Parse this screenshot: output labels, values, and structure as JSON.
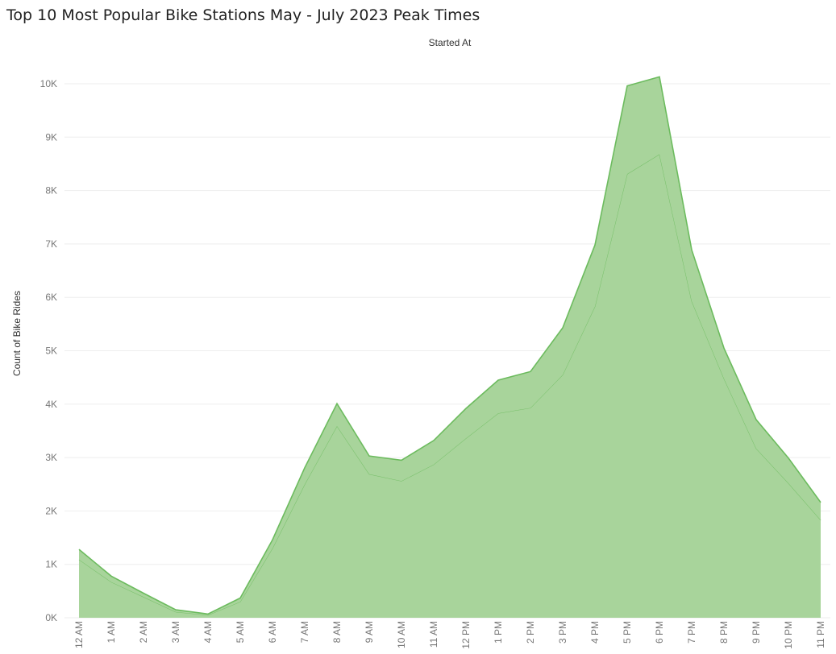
{
  "chart_data": {
    "type": "area",
    "title": "Top 10 Most Popular Bike Stations May - July 2023 Peak Times",
    "xlabel": "Started At",
    "ylabel": "Count of Bike Rides",
    "categories": [
      "12 AM",
      "1 AM",
      "2 AM",
      "3 AM",
      "4 AM",
      "5 AM",
      "6 AM",
      "7 AM",
      "8 AM",
      "9 AM",
      "10 AM",
      "11 AM",
      "12 PM",
      "1 PM",
      "2 PM",
      "3 PM",
      "4 PM",
      "5 PM",
      "6 PM",
      "7 PM",
      "8 PM",
      "9 PM",
      "10 PM",
      "11 PM"
    ],
    "y_ticks": [
      0,
      1000,
      2000,
      3000,
      4000,
      5000,
      6000,
      7000,
      8000,
      9000,
      10000
    ],
    "y_tick_labels": [
      "0K",
      "1K",
      "2K",
      "3K",
      "4K",
      "5K",
      "6K",
      "7K",
      "8K",
      "9K",
      "10K"
    ],
    "ylim": [
      0,
      10600
    ],
    "stacked": true,
    "series": [
      {
        "values": [
          1090,
          670,
          390,
          110,
          50,
          300,
          1300,
          2500,
          3590,
          2690,
          2560,
          2870,
          3360,
          3830,
          3930,
          4550,
          5830,
          8310,
          8680,
          5930,
          4480,
          3170,
          2520,
          1830
        ]
      },
      {
        "values": [
          190,
          110,
          70,
          40,
          20,
          70,
          160,
          310,
          420,
          340,
          390,
          450,
          560,
          620,
          680,
          880,
          1150,
          1650,
          1450,
          960,
          570,
          540,
          470,
          330
        ]
      }
    ],
    "colors": {
      "fill": "#a8d49b",
      "line": "#6cbb5e",
      "grid": "#eeeeee",
      "tick_text": "#777777"
    },
    "grid": true,
    "legend": "none"
  }
}
